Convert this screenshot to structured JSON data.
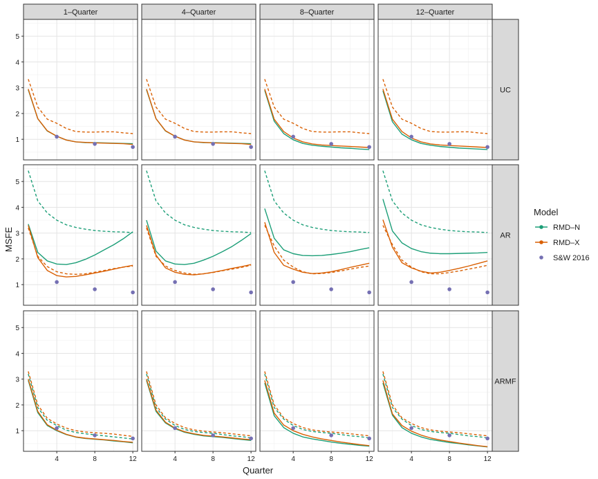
{
  "chart_data": {
    "type": "line",
    "facet_columns": [
      "1–Quarter",
      "4–Quarter",
      "8–Quarter",
      "12–Quarter"
    ],
    "facet_rows": [
      "UC",
      "AR",
      "ARMF"
    ],
    "xlabel": "Quarter",
    "ylabel": "MSFE",
    "xlim": [
      0.5,
      12.5
    ],
    "ylim": [
      0.2,
      5.65
    ],
    "x_ticks": [
      4,
      8,
      12
    ],
    "y_ticks": [
      1,
      2,
      3,
      4,
      5
    ],
    "grid": true,
    "legend": {
      "title": "Model",
      "position": "right",
      "entries": [
        {
          "name": "RMD–N",
          "color": "#1B9E77",
          "marker": "line-point"
        },
        {
          "name": "RMD–X",
          "color": "#D95F02",
          "marker": "line-point"
        },
        {
          "name": "S&W 2016",
          "color": "#7570B3",
          "marker": "point"
        }
      ]
    },
    "x": [
      1,
      2,
      3,
      4,
      5,
      6,
      7,
      8,
      9,
      10,
      11,
      12
    ],
    "sw_points": {
      "x": [
        4,
        8,
        12
      ],
      "y": [
        1.1,
        0.82,
        0.7
      ]
    },
    "panels": [
      {
        "row": "UC",
        "col": "1–Quarter",
        "series": [
          {
            "name": "RMD–N",
            "style": "solid",
            "values": [
              2.92,
              1.8,
              1.32,
              1.12,
              0.97,
              0.9,
              0.87,
              0.87,
              0.86,
              0.85,
              0.84,
              0.83
            ]
          },
          {
            "name": "RMD–X",
            "style": "solid",
            "values": [
              2.95,
              1.8,
              1.33,
              1.12,
              0.97,
              0.9,
              0.88,
              0.86,
              0.85,
              0.84,
              0.83,
              0.8
            ]
          },
          {
            "name": "RMD–X",
            "style": "dashed",
            "values": [
              3.33,
              2.25,
              1.78,
              1.62,
              1.42,
              1.3,
              1.28,
              1.28,
              1.29,
              1.29,
              1.25,
              1.22
            ]
          }
        ]
      },
      {
        "row": "UC",
        "col": "4–Quarter",
        "series": [
          {
            "name": "RMD–N",
            "style": "solid",
            "values": [
              2.92,
              1.8,
              1.32,
              1.12,
              0.97,
              0.9,
              0.87,
              0.87,
              0.86,
              0.85,
              0.84,
              0.83
            ]
          },
          {
            "name": "RMD–X",
            "style": "solid",
            "values": [
              2.95,
              1.8,
              1.33,
              1.12,
              0.97,
              0.9,
              0.88,
              0.86,
              0.85,
              0.84,
              0.83,
              0.8
            ]
          },
          {
            "name": "RMD–X",
            "style": "dashed",
            "values": [
              3.33,
              2.25,
              1.78,
              1.62,
              1.42,
              1.3,
              1.28,
              1.28,
              1.29,
              1.29,
              1.25,
              1.22
            ]
          }
        ]
      },
      {
        "row": "UC",
        "col": "8–Quarter",
        "series": [
          {
            "name": "RMD–N",
            "style": "solid",
            "values": [
              2.9,
              1.7,
              1.22,
              0.98,
              0.84,
              0.77,
              0.73,
              0.7,
              0.67,
              0.65,
              0.62,
              0.6
            ]
          },
          {
            "name": "RMD–X",
            "style": "solid",
            "values": [
              2.95,
              1.78,
              1.3,
              1.05,
              0.9,
              0.82,
              0.78,
              0.76,
              0.74,
              0.72,
              0.7,
              0.68
            ]
          },
          {
            "name": "RMD–X",
            "style": "dashed",
            "values": [
              3.33,
              2.25,
              1.78,
              1.62,
              1.42,
              1.3,
              1.28,
              1.28,
              1.29,
              1.29,
              1.25,
              1.22
            ]
          }
        ]
      },
      {
        "row": "UC",
        "col": "12–Quarter",
        "series": [
          {
            "name": "RMD–N",
            "style": "solid",
            "values": [
              2.88,
              1.68,
              1.2,
              0.98,
              0.84,
              0.77,
              0.72,
              0.69,
              0.66,
              0.64,
              0.62,
              0.6
            ]
          },
          {
            "name": "RMD–X",
            "style": "solid",
            "values": [
              2.95,
              1.78,
              1.3,
              1.05,
              0.9,
              0.82,
              0.78,
              0.76,
              0.74,
              0.72,
              0.7,
              0.68
            ]
          },
          {
            "name": "RMD–X",
            "style": "dashed",
            "values": [
              3.33,
              2.25,
              1.78,
              1.62,
              1.42,
              1.3,
              1.28,
              1.28,
              1.29,
              1.29,
              1.25,
              1.22
            ]
          }
        ]
      },
      {
        "row": "AR",
        "col": "1–Quarter",
        "series": [
          {
            "name": "RMD–N",
            "style": "dashed",
            "values": [
              5.42,
              4.25,
              3.78,
              3.5,
              3.32,
              3.22,
              3.15,
              3.1,
              3.07,
              3.05,
              3.04,
              3.02
            ]
          },
          {
            "name": "RMD–N",
            "style": "solid",
            "values": [
              3.35,
              2.25,
              1.92,
              1.8,
              1.78,
              1.85,
              1.98,
              2.15,
              2.35,
              2.55,
              2.78,
              3.05
            ]
          },
          {
            "name": "RMD–X",
            "style": "dashed",
            "values": [
              3.2,
              2.1,
              1.7,
              1.5,
              1.42,
              1.4,
              1.42,
              1.48,
              1.55,
              1.62,
              1.68,
              1.72
            ]
          },
          {
            "name": "RMD–X",
            "style": "solid",
            "values": [
              3.3,
              2.05,
              1.55,
              1.35,
              1.3,
              1.32,
              1.38,
              1.45,
              1.52,
              1.6,
              1.68,
              1.75
            ]
          }
        ]
      },
      {
        "row": "AR",
        "col": "4–Quarter",
        "series": [
          {
            "name": "RMD–N",
            "style": "dashed",
            "values": [
              5.42,
              4.25,
              3.78,
              3.5,
              3.32,
              3.22,
              3.15,
              3.1,
              3.07,
              3.05,
              3.04,
              3.02
            ]
          },
          {
            "name": "RMD–N",
            "style": "solid",
            "values": [
              3.5,
              2.3,
              1.92,
              1.8,
              1.78,
              1.83,
              1.95,
              2.1,
              2.28,
              2.48,
              2.72,
              2.98
            ]
          },
          {
            "name": "RMD–X",
            "style": "dashed",
            "values": [
              3.2,
              2.1,
              1.72,
              1.55,
              1.45,
              1.4,
              1.42,
              1.47,
              1.54,
              1.6,
              1.67,
              1.75
            ]
          },
          {
            "name": "RMD–X",
            "style": "solid",
            "values": [
              3.3,
              2.15,
              1.65,
              1.48,
              1.4,
              1.38,
              1.42,
              1.48,
              1.55,
              1.63,
              1.7,
              1.78
            ]
          }
        ]
      },
      {
        "row": "AR",
        "col": "8–Quarter",
        "series": [
          {
            "name": "RMD–N",
            "style": "dashed",
            "values": [
              5.42,
              4.25,
              3.78,
              3.5,
              3.32,
              3.22,
              3.15,
              3.1,
              3.07,
              3.05,
              3.04,
              3.02
            ]
          },
          {
            "name": "RMD–N",
            "style": "solid",
            "values": [
              3.95,
              2.8,
              2.35,
              2.2,
              2.13,
              2.12,
              2.13,
              2.17,
              2.22,
              2.28,
              2.36,
              2.43
            ]
          },
          {
            "name": "RMD–X",
            "style": "dashed",
            "values": [
              3.3,
              2.5,
              1.95,
              1.68,
              1.5,
              1.42,
              1.43,
              1.47,
              1.53,
              1.6,
              1.67,
              1.72
            ]
          },
          {
            "name": "RMD–X",
            "style": "solid",
            "values": [
              3.42,
              2.25,
              1.75,
              1.6,
              1.48,
              1.43,
              1.45,
              1.5,
              1.58,
              1.67,
              1.75,
              1.83
            ]
          }
        ]
      },
      {
        "row": "AR",
        "col": "12–Quarter",
        "series": [
          {
            "name": "RMD–N",
            "style": "dashed",
            "values": [
              5.42,
              4.25,
              3.78,
              3.5,
              3.32,
              3.22,
              3.15,
              3.1,
              3.07,
              3.05,
              3.04,
              3.02
            ]
          },
          {
            "name": "RMD–N",
            "style": "solid",
            "values": [
              4.32,
              3.08,
              2.62,
              2.4,
              2.28,
              2.22,
              2.2,
              2.2,
              2.21,
              2.22,
              2.23,
              2.25
            ]
          },
          {
            "name": "RMD–X",
            "style": "dashed",
            "values": [
              3.3,
              2.55,
              1.95,
              1.68,
              1.5,
              1.42,
              1.42,
              1.47,
              1.53,
              1.6,
              1.67,
              1.75
            ]
          },
          {
            "name": "RMD–X",
            "style": "solid",
            "values": [
              3.52,
              2.45,
              1.85,
              1.65,
              1.52,
              1.45,
              1.48,
              1.55,
              1.63,
              1.72,
              1.82,
              1.92
            ]
          }
        ]
      },
      {
        "row": "ARMF",
        "col": "1–Quarter",
        "series": [
          {
            "name": "RMD–N",
            "style": "dashed",
            "values": [
              3.2,
              1.9,
              1.4,
              1.2,
              1.02,
              0.93,
              0.88,
              0.84,
              0.8,
              0.76,
              0.72,
              0.68
            ]
          },
          {
            "name": "RMD–X",
            "style": "dashed",
            "values": [
              3.3,
              2.0,
              1.48,
              1.26,
              1.1,
              1.0,
              0.95,
              0.92,
              0.9,
              0.87,
              0.82,
              0.78
            ]
          },
          {
            "name": "RMD–N",
            "style": "solid",
            "values": [
              2.95,
              1.7,
              1.2,
              1.0,
              0.85,
              0.75,
              0.7,
              0.67,
              0.64,
              0.6,
              0.57,
              0.53
            ]
          },
          {
            "name": "RMD–X",
            "style": "solid",
            "values": [
              3.0,
              1.75,
              1.23,
              1.02,
              0.86,
              0.76,
              0.71,
              0.68,
              0.65,
              0.62,
              0.58,
              0.55
            ]
          }
        ]
      },
      {
        "row": "ARMF",
        "col": "4–Quarter",
        "series": [
          {
            "name": "RMD–N",
            "style": "dashed",
            "values": [
              3.2,
              1.9,
              1.45,
              1.2,
              1.05,
              0.97,
              0.93,
              0.9,
              0.85,
              0.8,
              0.77,
              0.72
            ]
          },
          {
            "name": "RMD–X",
            "style": "dashed",
            "values": [
              3.3,
              2.0,
              1.5,
              1.28,
              1.12,
              1.03,
              0.98,
              0.95,
              0.92,
              0.88,
              0.84,
              0.8
            ]
          },
          {
            "name": "RMD–N",
            "style": "solid",
            "values": [
              2.95,
              1.75,
              1.3,
              1.08,
              0.94,
              0.86,
              0.8,
              0.77,
              0.74,
              0.7,
              0.66,
              0.62
            ]
          },
          {
            "name": "RMD–X",
            "style": "solid",
            "values": [
              3.0,
              1.8,
              1.33,
              1.1,
              0.96,
              0.88,
              0.82,
              0.79,
              0.76,
              0.72,
              0.68,
              0.65
            ]
          }
        ]
      },
      {
        "row": "ARMF",
        "col": "8–Quarter",
        "series": [
          {
            "name": "RMD–N",
            "style": "dashed",
            "values": [
              3.2,
              1.9,
              1.45,
              1.2,
              1.05,
              0.97,
              0.93,
              0.9,
              0.85,
              0.8,
              0.77,
              0.72
            ]
          },
          {
            "name": "RMD–X",
            "style": "dashed",
            "values": [
              3.3,
              2.0,
              1.5,
              1.28,
              1.12,
              1.03,
              0.98,
              0.95,
              0.92,
              0.88,
              0.84,
              0.8
            ]
          },
          {
            "name": "RMD–N",
            "style": "solid",
            "values": [
              2.85,
              1.58,
              1.12,
              0.9,
              0.76,
              0.68,
              0.62,
              0.56,
              0.51,
              0.47,
              0.43,
              0.4
            ]
          },
          {
            "name": "RMD–X",
            "style": "solid",
            "values": [
              2.95,
              1.68,
              1.22,
              1.0,
              0.86,
              0.76,
              0.68,
              0.62,
              0.56,
              0.51,
              0.46,
              0.42
            ]
          }
        ]
      },
      {
        "row": "ARMF",
        "col": "12–Quarter",
        "series": [
          {
            "name": "RMD–N",
            "style": "dashed",
            "values": [
              3.2,
              1.9,
              1.45,
              1.2,
              1.05,
              0.97,
              0.93,
              0.9,
              0.85,
              0.8,
              0.77,
              0.72
            ]
          },
          {
            "name": "RMD–X",
            "style": "dashed",
            "values": [
              3.3,
              2.0,
              1.5,
              1.28,
              1.12,
              1.03,
              0.98,
              0.95,
              0.92,
              0.88,
              0.84,
              0.8
            ]
          },
          {
            "name": "RMD–N",
            "style": "solid",
            "values": [
              2.85,
              1.6,
              1.12,
              0.9,
              0.76,
              0.66,
              0.6,
              0.54,
              0.5,
              0.45,
              0.41,
              0.37
            ]
          },
          {
            "name": "RMD–X",
            "style": "solid",
            "values": [
              2.95,
              1.65,
              1.2,
              0.98,
              0.83,
              0.72,
              0.64,
              0.58,
              0.52,
              0.47,
              0.42,
              0.38
            ]
          }
        ]
      }
    ]
  }
}
